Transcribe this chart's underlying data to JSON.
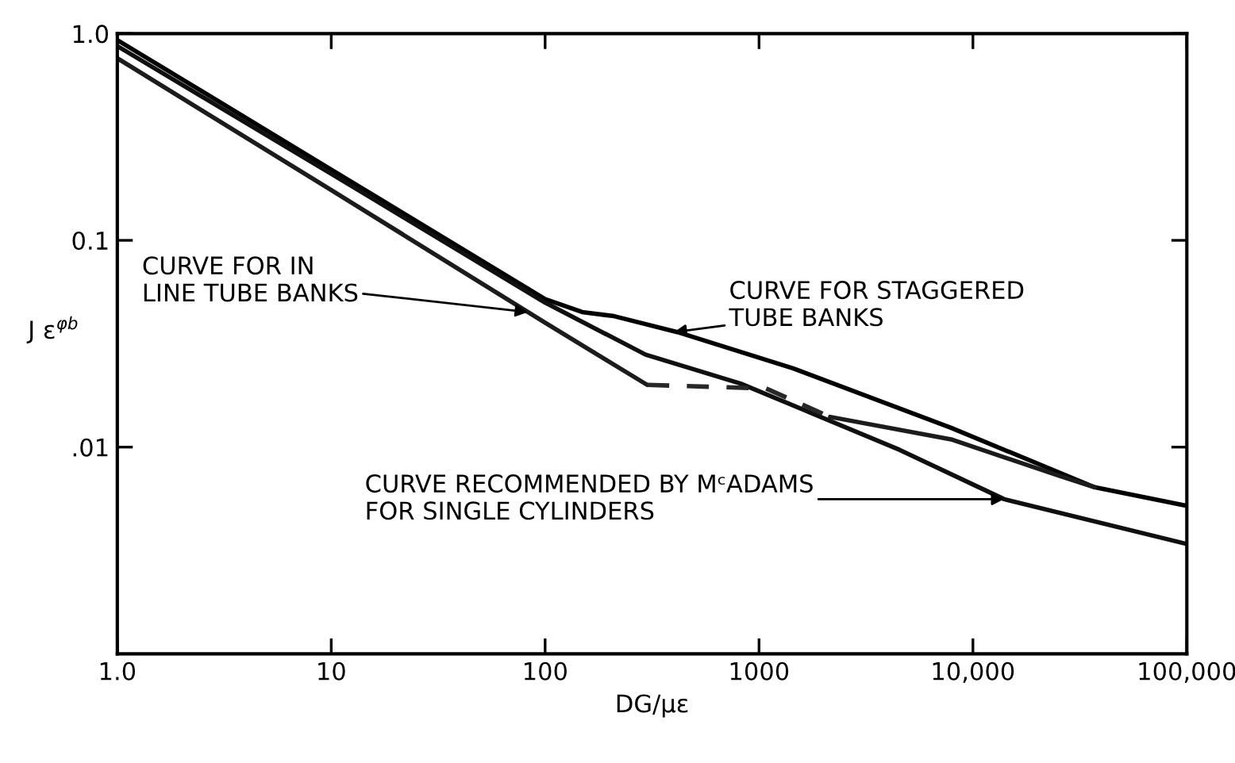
{
  "chart_data": {
    "type": "line",
    "xlabel": "DG/με",
    "ylabel": "J ε$^{φb}$",
    "log": "xy",
    "grid": false,
    "legend": false,
    "xlim": [
      1,
      100000
    ],
    "ylim": [
      0.001,
      1
    ],
    "xticks": [
      {
        "value": 1,
        "label": "1.0"
      },
      10,
      100,
      1000,
      {
        "value": 10000,
        "label": "10,000"
      },
      {
        "value": 100000,
        "label": "100,000"
      }
    ],
    "yticks": [
      {
        "value": 1,
        "label": "1.0"
      },
      {
        "value": 0.1,
        "label": "0.1"
      },
      {
        "value": 0.01,
        "label": ".01"
      }
    ],
    "series": [
      {
        "color": "#000000",
        "line_style": "solid",
        "x": [
          1,
          10,
          100,
          149,
          210,
          415,
          1450,
          7900,
          37000,
          100000
        ],
        "values": [
          0.93,
          0.22,
          0.052,
          0.045,
          0.043,
          0.036,
          0.024,
          0.0124,
          0.0064,
          0.0052
        ]
      },
      {
        "color": "#101010",
        "line_style": "solid",
        "x": [
          1,
          10,
          100,
          295,
          820,
          4540,
          14000,
          100000
        ],
        "values": [
          0.87,
          0.21,
          0.05,
          0.028,
          0.0203,
          0.0097,
          0.0056,
          0.0034
        ]
      },
      {
        "color": "#1c1c1c",
        "line_style": "solid",
        "x": [
          1,
          10,
          100,
          300,
          1080,
          2150,
          7900,
          25000,
          37000
        ],
        "values": [
          0.76,
          0.175,
          0.04,
          0.02,
          null,
          0.014,
          0.0109,
          0.0073,
          0.0064
        ]
      },
      {
        "color": "#282828",
        "line_style": "dashed",
        "x": [
          300,
          1080,
          2150
        ],
        "values": [
          0.02,
          0.0192,
          0.014
        ]
      }
    ],
    "annotations": [
      {
        "text": "CURVE FOR IN\nLINE TUBE BANKS",
        "x": 83,
        "y": 0.045
      },
      {
        "text": "CURVE FOR STAGGERED\nTUBE BANKS",
        "x": 400,
        "y": 0.036
      },
      {
        "text": "CURVE RECOMMENDED BY MᶜADAMS\nFOR SINGLE CYLINDERS",
        "x": 14000,
        "y": 0.0056
      }
    ]
  }
}
